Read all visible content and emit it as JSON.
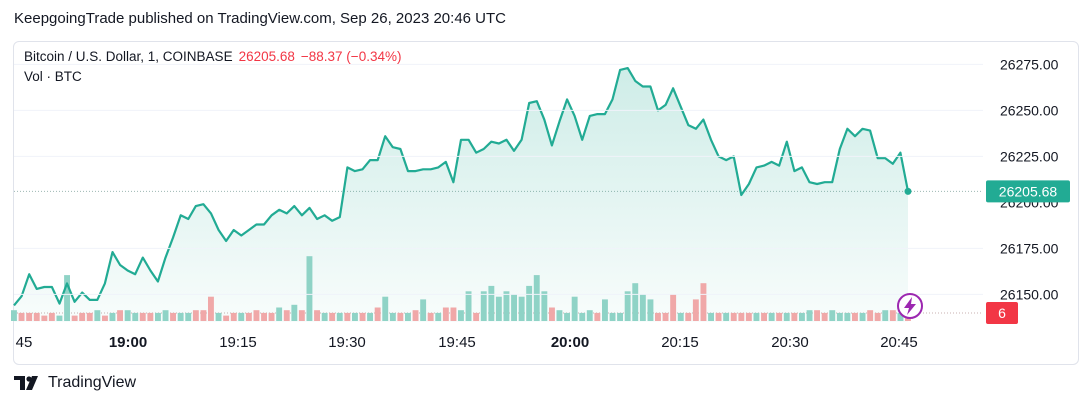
{
  "header": {
    "publish_text": "KeepgoingTrade published on TradingView.com, Sep 26, 2023 20:46 UTC"
  },
  "legend": {
    "symbol": "Bitcoin / U.S. Dollar, 1, COINBASE",
    "last_price": "26205.68",
    "change": "−88.37 (−0.34%)",
    "volume_label": "Vol · BTC"
  },
  "badges": {
    "price": "26205.68",
    "volume": "6"
  },
  "footer": {
    "brand": "TradingView"
  },
  "colors": {
    "line": "#22ab94",
    "up_volume": "#8fd3c6",
    "down_volume": "#f0a8a8",
    "price_badge": "#22ab94",
    "volume_badge": "#f23645",
    "icon": "#9c27b0"
  },
  "icons": {
    "lightning": "lightning-icon",
    "logo": "tradingview-logo-icon"
  },
  "chart_data": {
    "type": "line",
    "x_ticks": [
      "45",
      "19:00",
      "19:15",
      "19:30",
      "19:45",
      "20:00",
      "20:15",
      "20:30",
      "20:45"
    ],
    "bold_ticks": [
      "19:00",
      "20:00"
    ],
    "y_ticks": [
      "26275.00",
      "26250.00",
      "26225.00",
      "26175.00",
      "26150.00"
    ],
    "y_range": [
      26135,
      26285
    ],
    "series": [
      {
        "values": [
          26144,
          26149,
          26161,
          26153,
          26154,
          26154,
          26145,
          26156,
          26146,
          26151,
          26147,
          26147,
          26156,
          26173,
          26166,
          26163,
          26161,
          26170,
          26163,
          26157,
          26170,
          26181,
          26193,
          26191,
          26198,
          26199,
          26194,
          26185,
          26179,
          26185,
          26182,
          26185,
          26188,
          26188,
          26193,
          26196,
          26194,
          26198,
          26193,
          26197,
          26191,
          26193,
          26190,
          26192,
          26219,
          26217,
          26218,
          26223,
          26223,
          26236,
          26230,
          26229,
          26217,
          26217,
          26218,
          26218,
          26219,
          26222,
          26211,
          26234,
          26234,
          26227,
          26229,
          26233,
          26232,
          26234,
          26228,
          26234,
          26254,
          26255,
          26245,
          26231,
          26244,
          26256,
          26247,
          26234,
          26247,
          26248,
          26248,
          26256,
          26272,
          26273,
          26266,
          26263,
          26263,
          26250,
          26253,
          26262,
          26252,
          26242,
          26240,
          26245,
          26234,
          26225,
          26223,
          26225,
          26204,
          26210,
          26219,
          26220,
          26222,
          26220,
          26233,
          26217,
          26219,
          26211,
          26210,
          26211,
          26211,
          26229,
          26240,
          26236,
          26240,
          26239,
          26224,
          26224,
          26221,
          26227,
          26206
        ]
      }
    ],
    "volume": [
      4,
      3,
      3,
      3,
      2,
      3,
      2,
      3,
      2,
      3,
      3,
      4,
      2,
      3,
      4,
      4,
      3,
      3,
      3,
      3,
      4,
      3,
      3,
      3,
      4,
      4,
      3,
      3,
      2,
      3,
      3,
      3,
      4,
      3,
      3,
      5,
      4,
      6,
      4,
      6,
      4,
      3,
      3,
      3,
      3,
      3,
      3,
      3,
      5,
      4,
      3,
      3,
      3,
      4,
      4,
      3,
      3,
      5,
      5,
      4,
      4,
      3,
      3,
      3,
      3,
      3,
      3,
      3,
      3,
      3,
      4,
      5,
      4,
      3,
      3,
      3,
      4,
      3,
      3,
      3,
      3,
      3,
      4,
      4,
      3,
      3,
      3,
      3,
      3,
      3,
      3,
      3,
      3,
      3,
      3,
      3,
      3,
      3,
      3,
      3,
      3,
      3,
      3,
      3,
      3,
      4,
      4,
      3,
      4,
      3,
      3,
      3,
      3,
      4,
      3,
      4,
      4,
      3,
      3
    ],
    "volume_up": [
      1,
      0,
      0,
      0,
      0,
      0,
      1,
      0,
      0,
      0,
      0,
      1,
      0,
      1,
      0,
      1,
      1,
      0,
      0,
      1,
      1,
      0,
      1,
      1,
      0,
      0,
      0,
      1,
      0,
      0,
      1,
      0,
      0,
      0,
      0,
      1,
      0,
      1,
      0,
      1,
      0,
      1,
      0,
      1,
      0,
      1,
      0,
      1,
      0,
      0,
      1,
      0,
      1,
      0,
      0,
      0,
      1,
      0,
      0,
      1,
      1,
      0,
      1,
      1,
      0,
      1,
      0,
      1,
      1,
      1,
      1,
      0,
      1,
      1,
      0,
      1,
      1,
      0,
      0,
      1,
      1,
      1,
      1,
      1,
      0,
      0,
      0,
      0,
      1,
      0,
      1,
      0,
      1,
      0,
      1,
      0,
      0,
      0,
      1,
      0,
      1,
      0,
      1,
      0,
      1,
      1,
      0,
      0,
      1,
      1,
      1,
      0,
      1,
      0,
      0,
      1,
      0,
      1,
      0
    ],
    "volume_override": {
      "7": [
        1,
        17
      ],
      "26": [
        0,
        9
      ],
      "39": [
        1,
        24
      ],
      "49": [
        1,
        9
      ],
      "54": [
        1,
        8
      ],
      "60": [
        1,
        11
      ],
      "64": [
        1,
        9
      ],
      "65": [
        1,
        11
      ],
      "67": [
        1,
        9
      ],
      "62": [
        1,
        11
      ],
      "63": [
        1,
        13
      ],
      "66": [
        1,
        10
      ],
      "68": [
        1,
        13
      ],
      "69": [
        1,
        17
      ],
      "70": [
        1,
        11
      ],
      "74": [
        1,
        9
      ],
      "78": [
        1,
        8
      ],
      "81": [
        1,
        11
      ],
      "82": [
        1,
        14
      ],
      "83": [
        1,
        10
      ],
      "84": [
        1,
        8
      ],
      "87": [
        0,
        10
      ],
      "90": [
        0,
        8
      ],
      "91": [
        0,
        14
      ]
    }
  }
}
